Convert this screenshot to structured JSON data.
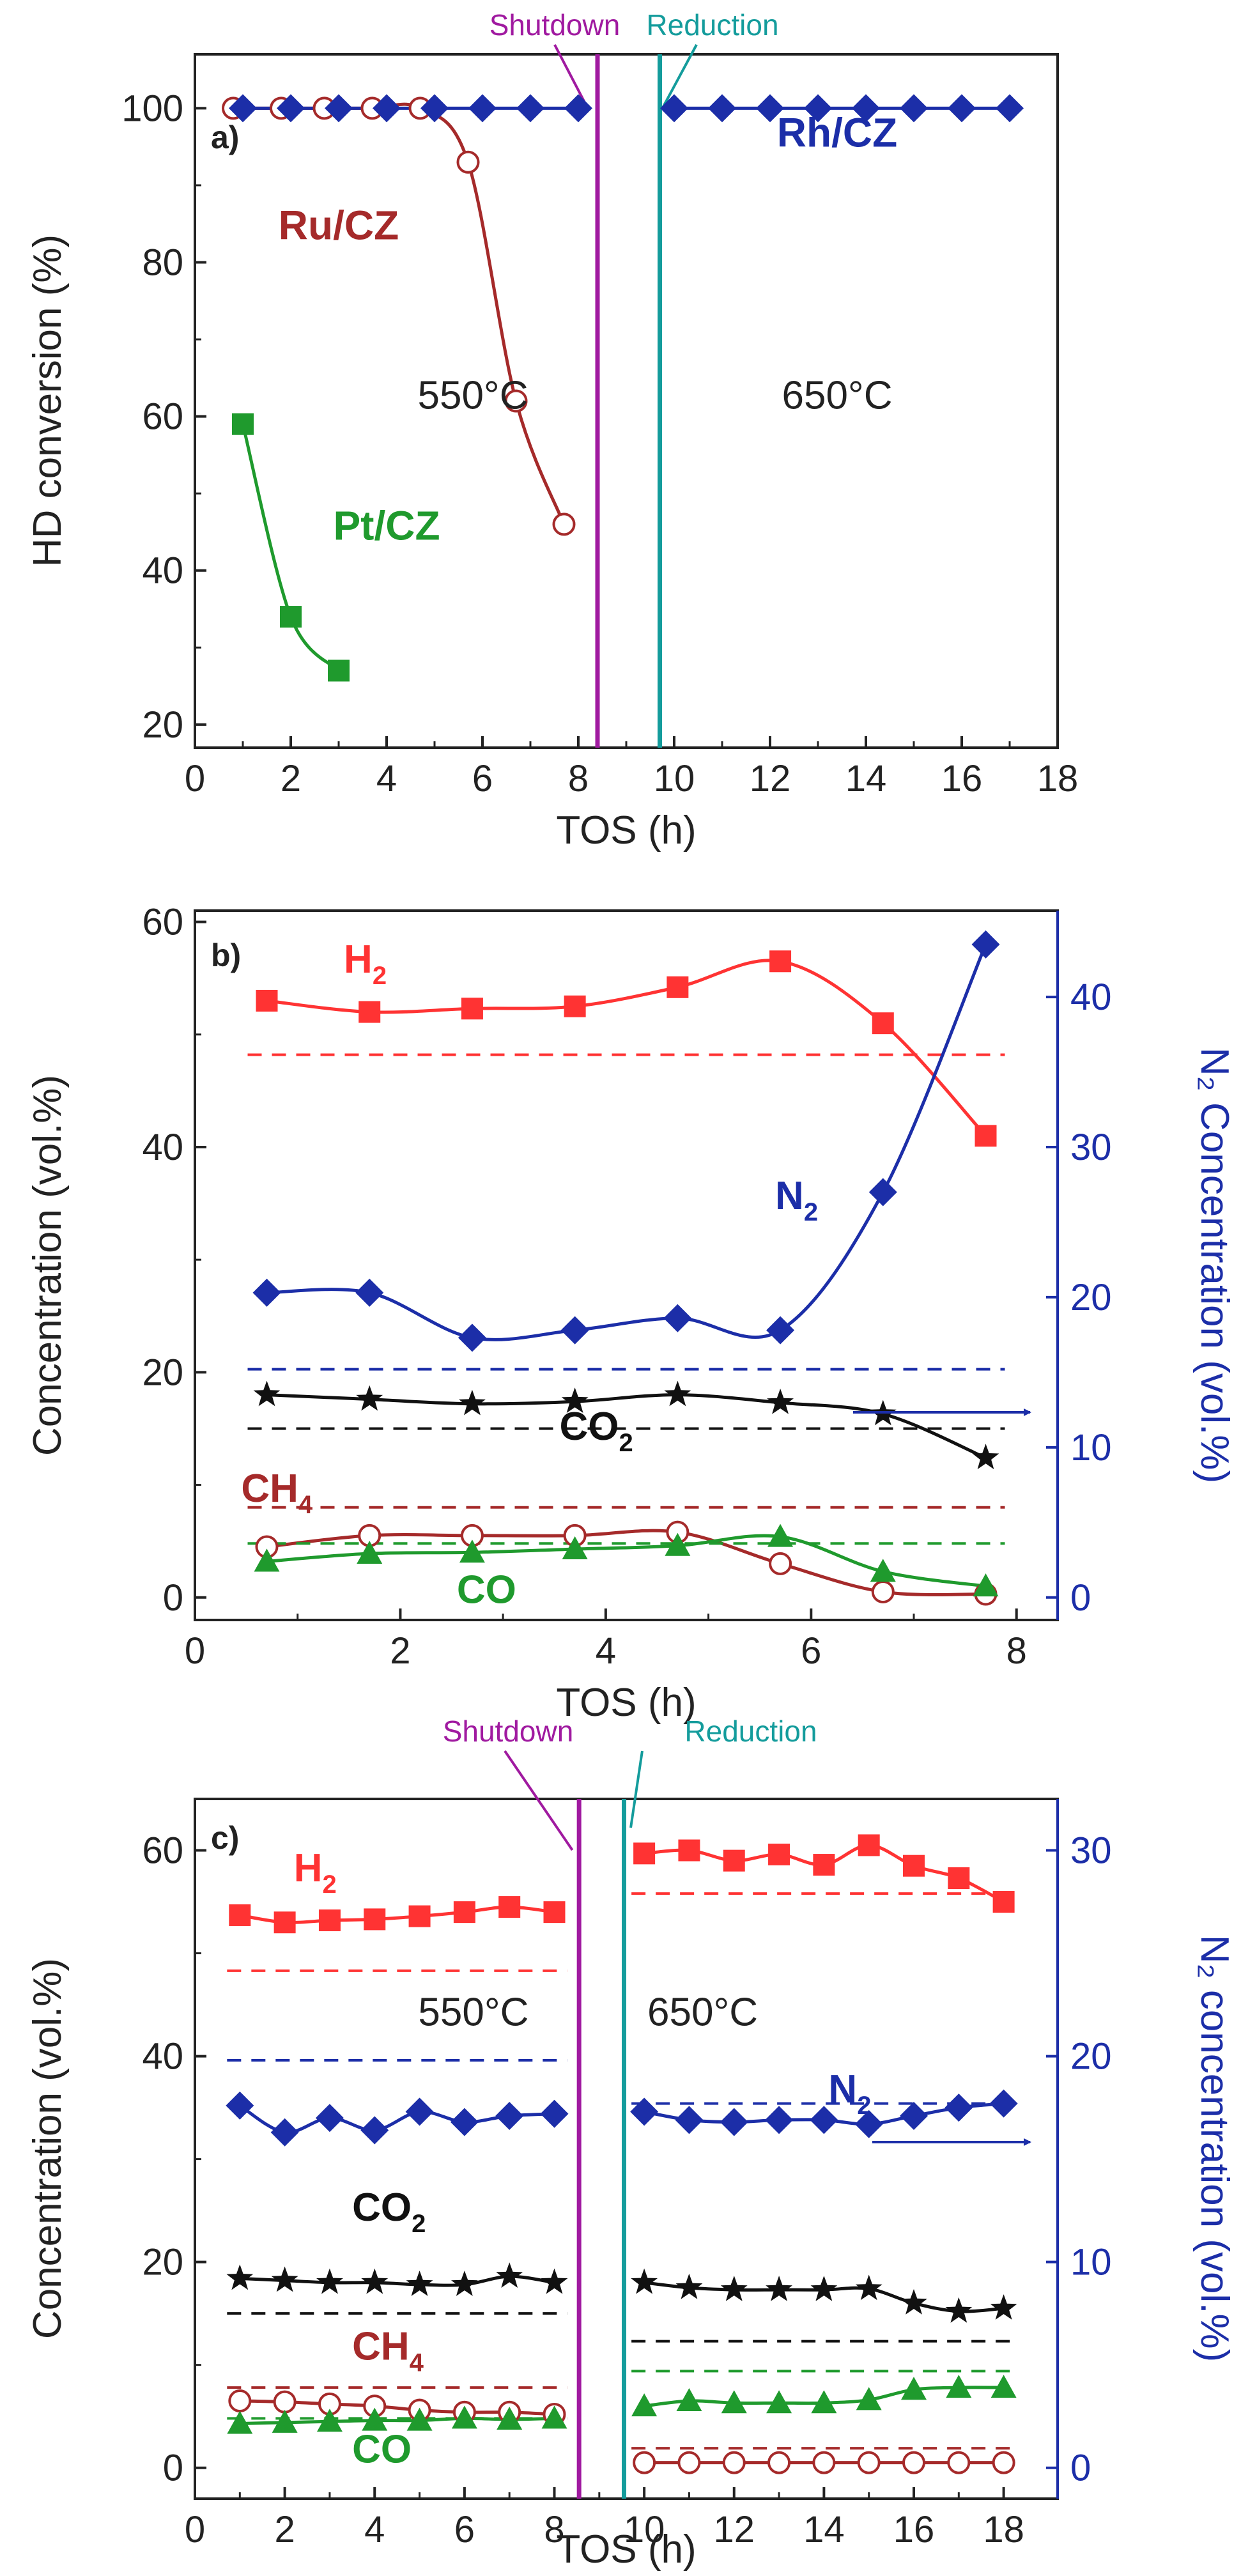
{
  "colors": {
    "ru": "#a52a2a",
    "rh": "#1c2ea8",
    "pt": "#1f9a2d",
    "h2": "#ff3333",
    "co2": "#111111",
    "shutdown": "#a01aa0",
    "reduction": "#149c9c",
    "axis": "#222222"
  },
  "chart_data": [
    {
      "panel": "a",
      "type": "scatter",
      "panel_label": "a)",
      "xlabel": "TOS (h)",
      "ylabel": "HD conversion (%)",
      "xlim": [
        0,
        18
      ],
      "ylim": [
        17,
        107
      ],
      "xticks": [
        0,
        2,
        4,
        6,
        8,
        10,
        12,
        14,
        16,
        18
      ],
      "yticks": [
        20,
        40,
        60,
        80,
        100
      ],
      "series": [
        {
          "name": "Ru/CZ",
          "color_key": "ru",
          "marker": "circle-open",
          "x": [
            0.8,
            1.8,
            2.7,
            3.7,
            4.7,
            5.7,
            6.7,
            7.7
          ],
          "y": [
            100,
            100,
            100,
            100,
            100,
            93,
            62,
            46
          ]
        },
        {
          "name": "Rh/CZ",
          "color_key": "rh",
          "marker": "diamond",
          "x": [
            1,
            2,
            3,
            4,
            5,
            6,
            7,
            8,
            10,
            11,
            12,
            13,
            14,
            15,
            16,
            17
          ],
          "y": [
            100,
            100,
            100,
            100,
            100,
            100,
            100,
            100,
            100,
            100,
            100,
            100,
            100,
            100,
            100,
            100
          ]
        },
        {
          "name": "Pt/CZ",
          "color_key": "pt",
          "marker": "square",
          "x": [
            1,
            2,
            3
          ],
          "y": [
            59,
            34,
            27
          ]
        }
      ],
      "series_labels": [
        {
          "text": "Ru/CZ",
          "color_key": "ru",
          "x": 3.0,
          "y": 83
        },
        {
          "text": "Rh/CZ",
          "color_key": "rh",
          "x": 13.4,
          "y": 95
        },
        {
          "text": "Pt/CZ",
          "color_key": "pt",
          "x": 4.0,
          "y": 44
        }
      ],
      "vlines": [
        {
          "x": 8.4,
          "color_key": "shutdown",
          "label": "Shutdown"
        },
        {
          "x": 9.7,
          "color_key": "reduction",
          "label": "Reduction"
        }
      ],
      "annotations": [
        {
          "text": "550°C",
          "x": 5.8,
          "y": 61
        },
        {
          "text": "650°C",
          "x": 13.4,
          "y": 61
        }
      ]
    },
    {
      "panel": "b",
      "type": "line",
      "panel_label": "b)",
      "xlabel": "TOS (h)",
      "ylabel": "Concentration (vol.%)",
      "y2label": "N₂ Concentration (vol.%)",
      "xlim": [
        0,
        8.4
      ],
      "ylim": [
        -2,
        61
      ],
      "y2lim": [
        -1.5,
        45.75
      ],
      "xticks": [
        0,
        2,
        4,
        6,
        8
      ],
      "yticks": [
        0,
        20,
        40,
        60
      ],
      "y2ticks": [
        0,
        10,
        20,
        30,
        40
      ],
      "series": [
        {
          "name": "H₂",
          "color_key": "h2",
          "marker": "square",
          "axis": "left",
          "x": [
            0.7,
            1.7,
            2.7,
            3.7,
            4.7,
            5.7,
            6.7,
            7.7
          ],
          "y": [
            53,
            52,
            52.3,
            52.5,
            54.2,
            56.5,
            51,
            41
          ],
          "dashed": 48.2
        },
        {
          "name": "N₂",
          "color_key": "rh",
          "marker": "diamond",
          "axis": "right",
          "x": [
            0.7,
            1.7,
            2.7,
            3.7,
            4.7,
            5.7,
            6.7,
            7.7
          ],
          "y": [
            20.3,
            20.3,
            17.3,
            17.8,
            18.6,
            17.8,
            27,
            43.5
          ],
          "dashed": 15.2
        },
        {
          "name": "CO₂",
          "color_key": "co2",
          "marker": "star",
          "axis": "left",
          "x": [
            0.7,
            1.7,
            2.7,
            3.7,
            4.7,
            5.7,
            6.7,
            7.7
          ],
          "y": [
            18,
            17.6,
            17.2,
            17.4,
            18,
            17.3,
            16.3,
            12.4
          ],
          "dashed": 15
        },
        {
          "name": "CH₄",
          "color_key": "ru",
          "marker": "circle-open",
          "axis": "left",
          "x": [
            0.7,
            1.7,
            2.7,
            3.7,
            4.7,
            5.7,
            6.7,
            7.7
          ],
          "y": [
            4.5,
            5.5,
            5.5,
            5.5,
            5.8,
            3,
            0.5,
            0.3
          ],
          "dashed": 8
        },
        {
          "name": "CO",
          "color_key": "pt",
          "marker": "triangle",
          "axis": "left",
          "x": [
            0.7,
            1.7,
            2.7,
            3.7,
            4.7,
            5.7,
            6.7,
            7.7
          ],
          "y": [
            3.2,
            3.9,
            4,
            4.3,
            4.6,
            5.4,
            2.3,
            1
          ],
          "dashed": 4.8
        }
      ],
      "series_labels": [
        {
          "text": "H",
          "sub": "2",
          "color_key": "h2",
          "x": 1.45,
          "y": 55.5
        },
        {
          "text": "N",
          "sub": "2",
          "color_key": "rh",
          "x": 5.65,
          "y": 34.5
        },
        {
          "text": "CO",
          "sub": "2",
          "color_key": "co2",
          "x": 3.55,
          "y": 14
        },
        {
          "text": "CH",
          "sub": "4",
          "color_key": "ru",
          "x": 0.45,
          "y": 8.5
        },
        {
          "text": "CO",
          "sub": "",
          "color_key": "pt",
          "x": 2.55,
          "y": -0.5
        }
      ]
    },
    {
      "panel": "c",
      "type": "line",
      "panel_label": "c)",
      "xlabel": "TOS (h)",
      "ylabel": "Concentration (vol.%)",
      "y2label": "N₂ concentration (vol.%)",
      "xlim": [
        0,
        19.2
      ],
      "ylim": [
        -3,
        65
      ],
      "y2lim": [
        -1.5,
        32.5
      ],
      "xticks": [
        0,
        2,
        4,
        6,
        8,
        10,
        12,
        14,
        16,
        18
      ],
      "yticks": [
        0,
        20,
        40,
        60
      ],
      "y2ticks": [
        0,
        10,
        20,
        30
      ],
      "vlines": [
        {
          "x": 8.55,
          "color_key": "shutdown",
          "label": "Shutdown"
        },
        {
          "x": 9.55,
          "color_key": "reduction",
          "label": "Reduction"
        }
      ],
      "annotations": [
        {
          "text": "550°C",
          "x": 6.2,
          "y": 43
        },
        {
          "text": "650°C",
          "x": 11.3,
          "y": 43
        }
      ],
      "series": [
        {
          "name": "H₂",
          "color_key": "h2",
          "marker": "square",
          "axis": "left",
          "segments": [
            {
              "x": [
                1,
                2,
                3,
                4,
                5,
                6,
                7,
                8
              ],
              "y": [
                53.7,
                53,
                53.2,
                53.3,
                53.6,
                54,
                54.5,
                54
              ],
              "dashed": 48.3,
              "dash_x": [
                1,
                8
              ]
            },
            {
              "x": [
                10,
                11,
                12,
                13,
                14,
                15,
                16,
                17,
                18
              ],
              "y": [
                59.7,
                60,
                59,
                59.6,
                58.6,
                60.5,
                58.5,
                57.3,
                55
              ],
              "dashed": 55.8,
              "dash_x": [
                10,
                18
              ]
            }
          ]
        },
        {
          "name": "N₂",
          "color_key": "rh",
          "marker": "diamond",
          "axis": "right",
          "segments": [
            {
              "x": [
                1,
                2,
                3,
                4,
                5,
                6,
                7,
                8
              ],
              "y": [
                17.6,
                16.3,
                17,
                16.4,
                17.3,
                16.8,
                17.1,
                17.2
              ],
              "dashed": 19.8,
              "dash_x": [
                1,
                8
              ]
            },
            {
              "x": [
                10,
                11,
                12,
                13,
                14,
                15,
                16,
                17,
                18
              ],
              "y": [
                17.3,
                16.9,
                16.8,
                16.9,
                16.9,
                16.7,
                17.1,
                17.5,
                17.7
              ],
              "dashed": 17.7,
              "dash_x": [
                10,
                18
              ]
            }
          ]
        },
        {
          "name": "CO₂",
          "color_key": "co2",
          "marker": "star",
          "axis": "left",
          "segments": [
            {
              "x": [
                1,
                2,
                3,
                4,
                5,
                6,
                7,
                8
              ],
              "y": [
                18.4,
                18.2,
                18,
                18,
                17.8,
                17.8,
                18.6,
                18
              ],
              "dashed": 15,
              "dash_x": [
                1,
                8
              ]
            },
            {
              "x": [
                10,
                11,
                12,
                13,
                14,
                15,
                16,
                17,
                18
              ],
              "y": [
                18,
                17.5,
                17.3,
                17.3,
                17.3,
                17.4,
                16,
                15.2,
                15.5
              ],
              "dashed": 12.3,
              "dash_x": [
                10,
                18
              ]
            }
          ]
        },
        {
          "name": "CH₄",
          "color_key": "ru",
          "marker": "circle-open",
          "axis": "left",
          "segments": [
            {
              "x": [
                1,
                2,
                3,
                4,
                5,
                6,
                7,
                8
              ],
              "y": [
                6.5,
                6.4,
                6.2,
                6,
                5.6,
                5.4,
                5.4,
                5.2
              ],
              "dashed": 7.8,
              "dash_x": [
                1,
                8
              ]
            },
            {
              "x": [
                10,
                11,
                12,
                13,
                14,
                15,
                16,
                17,
                18
              ],
              "y": [
                0.5,
                0.5,
                0.5,
                0.5,
                0.5,
                0.5,
                0.5,
                0.5,
                0.5
              ],
              "dashed": 1.9,
              "dash_x": [
                10,
                18
              ]
            }
          ]
        },
        {
          "name": "CO",
          "color_key": "pt",
          "marker": "triangle",
          "axis": "left",
          "segments": [
            {
              "x": [
                1,
                2,
                3,
                4,
                5,
                6,
                7,
                8
              ],
              "y": [
                4.3,
                4.4,
                4.5,
                4.6,
                4.6,
                4.8,
                4.7,
                4.8
              ],
              "dashed": 4.8,
              "dash_x": [
                1,
                8
              ]
            },
            {
              "x": [
                10,
                11,
                12,
                13,
                14,
                15,
                16,
                17,
                18
              ],
              "y": [
                6,
                6.5,
                6.3,
                6.3,
                6.3,
                6.6,
                7.6,
                7.8,
                7.8
              ],
              "dashed": 9.4,
              "dash_x": [
                10,
                18
              ]
            }
          ]
        }
      ],
      "series_labels": [
        {
          "text": "H",
          "sub": "2",
          "color_key": "h2",
          "x": 2.2,
          "y": 57
        },
        {
          "text": "N",
          "sub": "2",
          "color_key": "rh",
          "x": 14.1,
          "y": 35.5
        },
        {
          "text": "CO",
          "sub": "2",
          "color_key": "co2",
          "x": 3.5,
          "y": 24
        },
        {
          "text": "CH",
          "sub": "4",
          "color_key": "ru",
          "x": 3.5,
          "y": 10.5
        },
        {
          "text": "CO",
          "sub": "",
          "color_key": "pt",
          "x": 3.5,
          "y": 0.5
        }
      ]
    }
  ]
}
